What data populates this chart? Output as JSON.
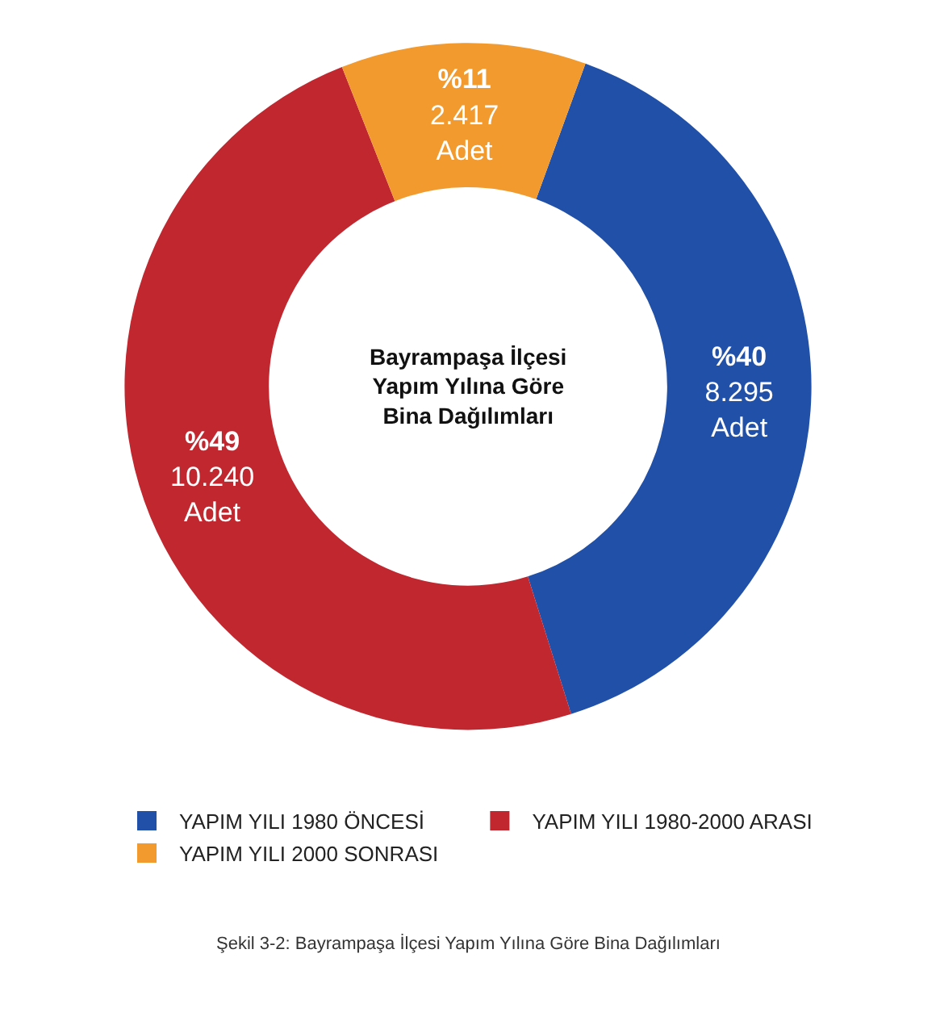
{
  "chart_data": {
    "type": "donut",
    "title": "Bayrampaşa İlçesi\nYapım Yılına Göre\nBina Dağılımları",
    "categories": [
      "YAPIM YILI 1980 ÖNCESİ",
      "YAPIM YILI 1980-2000 ARASI",
      "YAPIM YILI 2000 SONRASI"
    ],
    "values": [
      8295,
      10240,
      2417
    ],
    "colors": [
      "#2150a8",
      "#c1272f",
      "#f29a2e"
    ],
    "value_labels": [
      "%40\n8.295\nAdet",
      "%49\n10.240\nAdet",
      "%11\n2.417\nAdet"
    ],
    "legend": "bottom",
    "annotations": [
      "Şekil 3-2: Bayrampaşa İlçesi Yapım Yılına Göre Bina Dağılımları"
    ]
  }
}
